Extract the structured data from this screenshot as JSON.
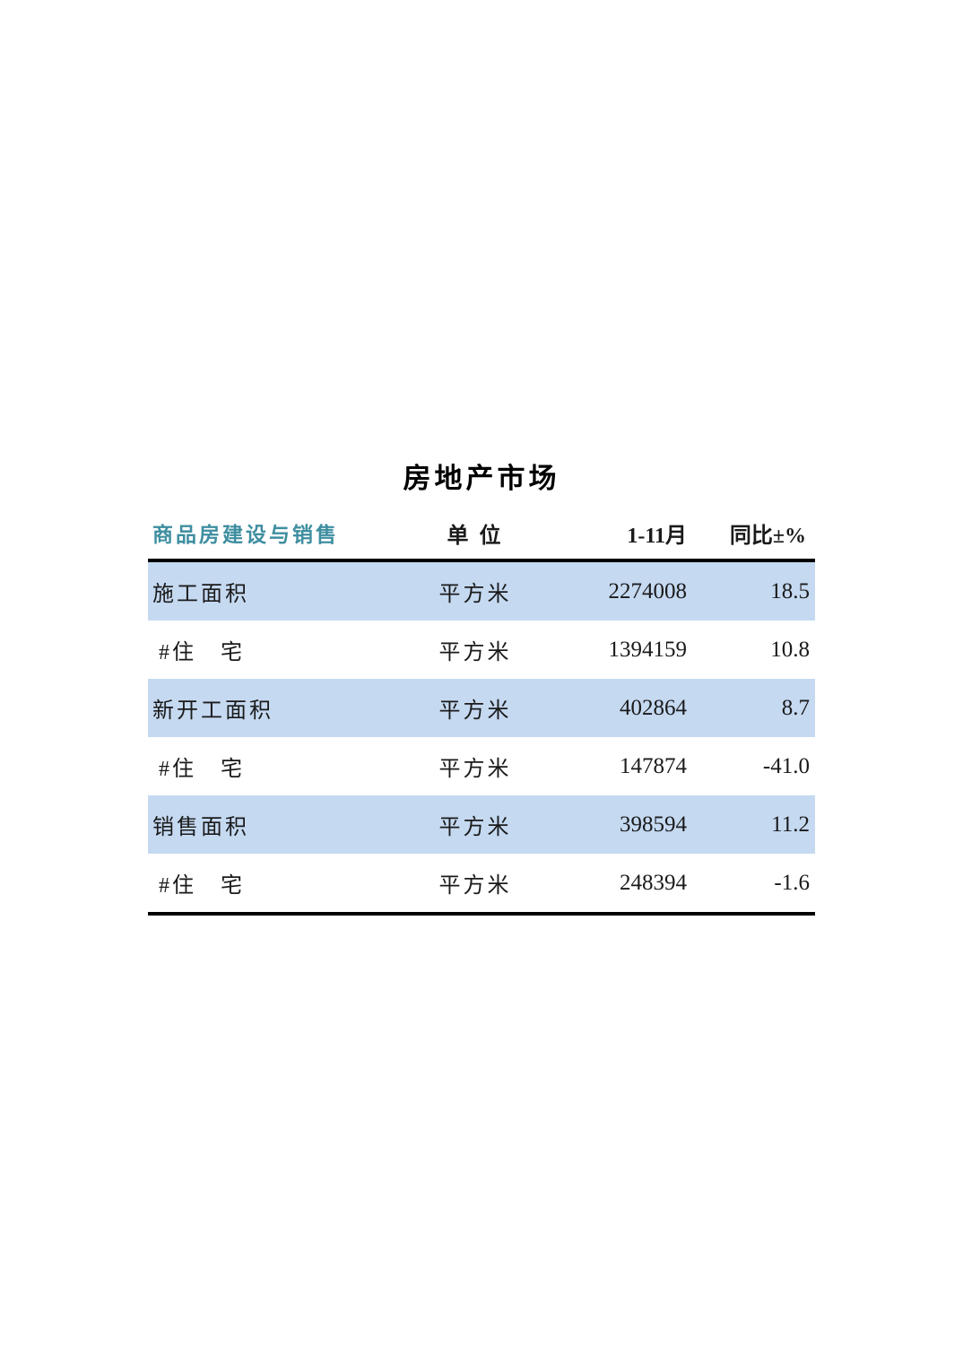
{
  "table": {
    "title": "房地产市场",
    "header": {
      "category": "商品房建设与销售",
      "unit": "单 位",
      "period": "1-11月",
      "yoy": "同比±%",
      "category_color": "#3E8EA0"
    },
    "rows": [
      {
        "name": "施工面积",
        "unit": "平方米",
        "value": "2274008",
        "yoy": "18.5",
        "highlight": true
      },
      {
        "name": "#住　宅",
        "unit": "平方米",
        "value": "1394159",
        "yoy": "10.8",
        "highlight": false
      },
      {
        "name": "新开工面积",
        "unit": "平方米",
        "value": "402864",
        "yoy": "8.7",
        "highlight": true
      },
      {
        "name": "#住　宅",
        "unit": "平方米",
        "value": "147874",
        "yoy": "-41.0",
        "highlight": false
      },
      {
        "name": "销售面积",
        "unit": "平方米",
        "value": "398594",
        "yoy": "11.2",
        "highlight": true
      },
      {
        "name": "#住　宅",
        "unit": "平方米",
        "value": "248394",
        "yoy": "-1.6",
        "highlight": false
      }
    ],
    "colors": {
      "highlight_row": "#C5D9F1",
      "border": "#000000",
      "text": "#1a1a1a"
    }
  }
}
